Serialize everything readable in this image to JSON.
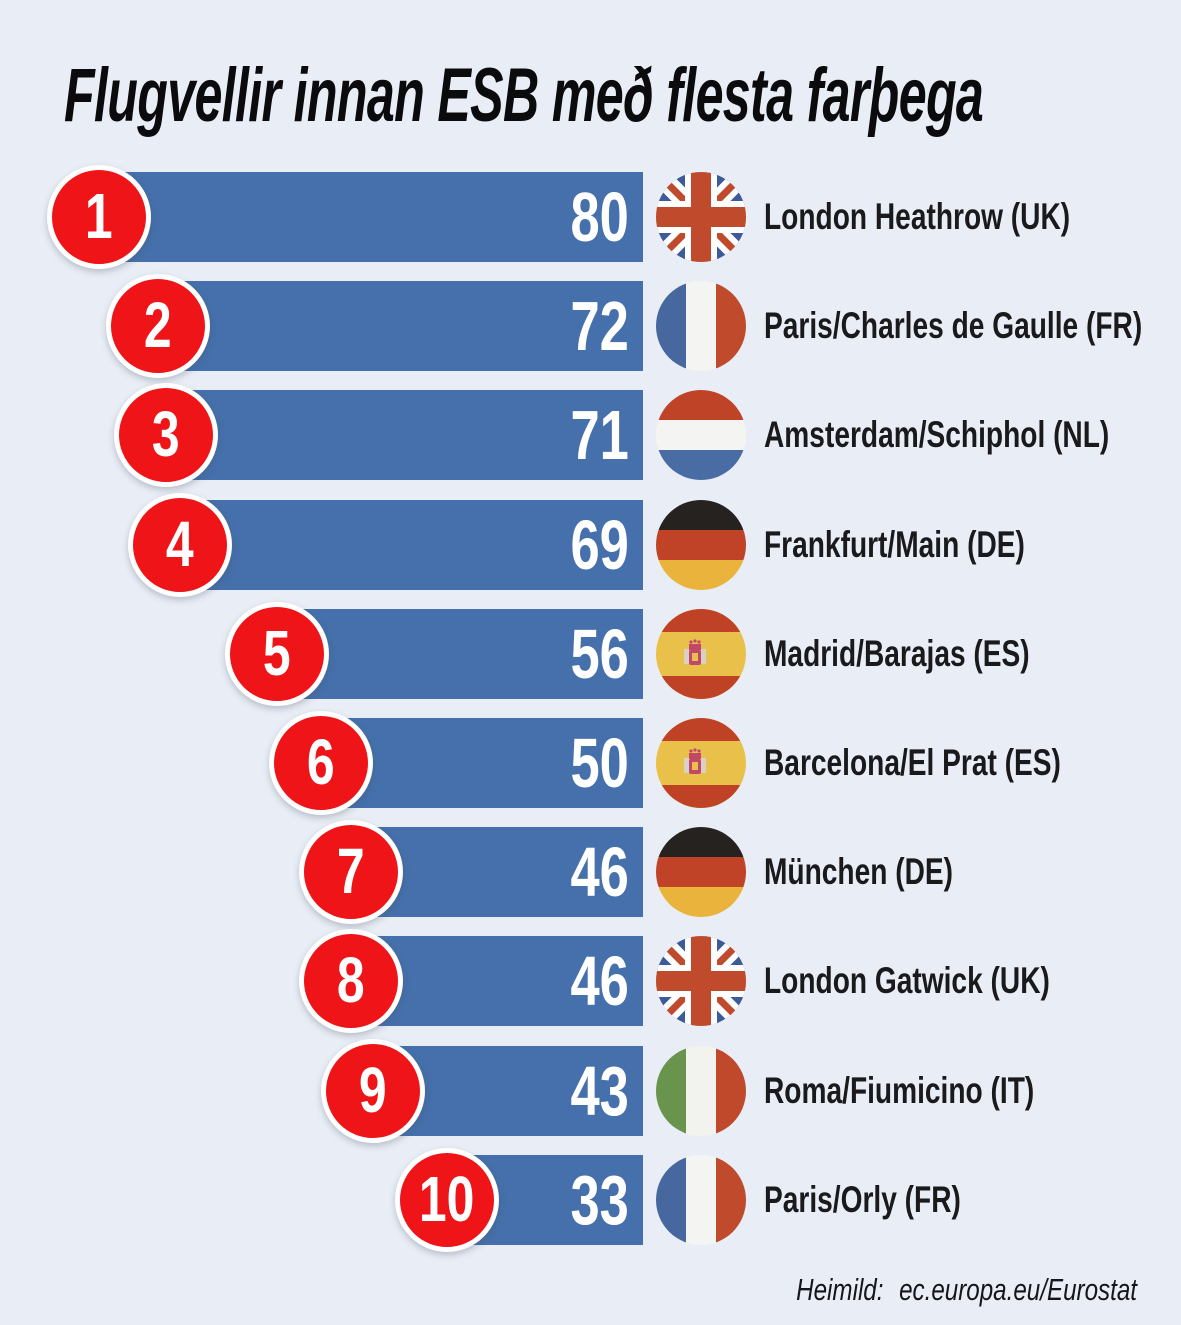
{
  "title": "Flugvellir innan ESB með flesta farþega",
  "source": {
    "label": "Heimild:",
    "value": "ec.europa.eu/Eurostat"
  },
  "colors": {
    "background": "#e9eef6",
    "bar": "#4570ab",
    "rank_badge": "#ee1418",
    "value_text": "#ffffff",
    "title_text": "#0b0b0d",
    "label_text": "#1a1a1c"
  },
  "flag_colors": {
    "uk": {
      "field": "#3d5a99",
      "cross": "#c04a2c",
      "fimbriation": "#ffffff"
    },
    "fr": {
      "left": "#47679f",
      "middle": "#f4f5f2",
      "right": "#c04a2c"
    },
    "nl": {
      "top": "#bf4327",
      "middle": "#f4f5f2",
      "bottom": "#4a6ca5"
    },
    "de": {
      "top": "#26221f",
      "middle": "#c04327",
      "bottom": "#eab43c"
    },
    "es": {
      "band": "#bf4227",
      "middle": "#e9c04a",
      "emblem": "#c2486a",
      "pillar": "#d9d0c6"
    },
    "it": {
      "left": "#69944d",
      "middle": "#f2f3ee",
      "right": "#c0492b"
    }
  },
  "chart_data": {
    "type": "bar",
    "orientation": "horizontal",
    "bars_right_aligned": true,
    "value_labels": "inside-right",
    "grid": false,
    "legend": false,
    "title": "Flugvellir innan ESB með flesta farþega",
    "xlim": [
      0,
      80
    ],
    "rows": [
      {
        "rank": 1,
        "value": 80,
        "airport": "London Heathrow (UK)",
        "flag": "uk"
      },
      {
        "rank": 2,
        "value": 72,
        "airport": "Paris/Charles de Gaulle (FR)",
        "flag": "fr"
      },
      {
        "rank": 3,
        "value": 71,
        "airport": "Amsterdam/Schiphol (NL)",
        "flag": "nl"
      },
      {
        "rank": 4,
        "value": 69,
        "airport": "Frankfurt/Main (DE)",
        "flag": "de"
      },
      {
        "rank": 5,
        "value": 56,
        "airport": "Madrid/Barajas (ES)",
        "flag": "es"
      },
      {
        "rank": 6,
        "value": 50,
        "airport": "Barcelona/El Prat (ES)",
        "flag": "es"
      },
      {
        "rank": 7,
        "value": 46,
        "airport": "München (DE)",
        "flag": "de"
      },
      {
        "rank": 8,
        "value": 46,
        "airport": "London Gatwick (UK)",
        "flag": "uk"
      },
      {
        "rank": 9,
        "value": 43,
        "airport": "Roma/Fiumicino (IT)",
        "flag": "it"
      },
      {
        "rank": 10,
        "value": 33,
        "airport": "Paris/Orly (FR)",
        "flag": "fr"
      }
    ]
  }
}
